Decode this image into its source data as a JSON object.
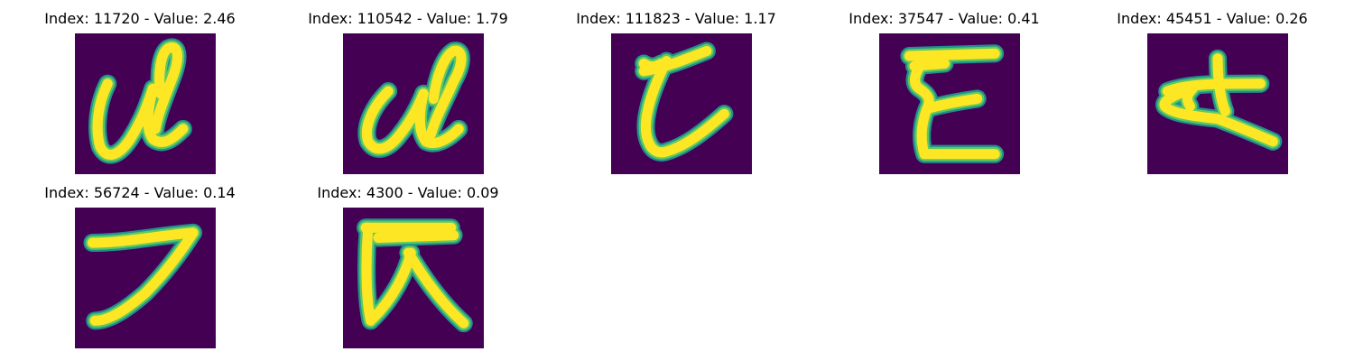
{
  "colors": {
    "background": "#440154",
    "stroke_core": "#fde725",
    "stroke_mid": "#5ec962",
    "stroke_edge": "#21918c"
  },
  "panels": [
    {
      "label": "Index: 11720 - Value: 2.46"
    },
    {
      "label": "Index: 110542 - Value: 1.79"
    },
    {
      "label": "Index: 111823 - Value: 1.17"
    },
    {
      "label": "Index: 37547 - Value: 0.41"
    },
    {
      "label": "Index: 45451 - Value: 0.26"
    },
    {
      "label": "Index: 56724 - Value: 0.14"
    },
    {
      "label": "Index: 4300 - Value: 0.09"
    }
  ]
}
